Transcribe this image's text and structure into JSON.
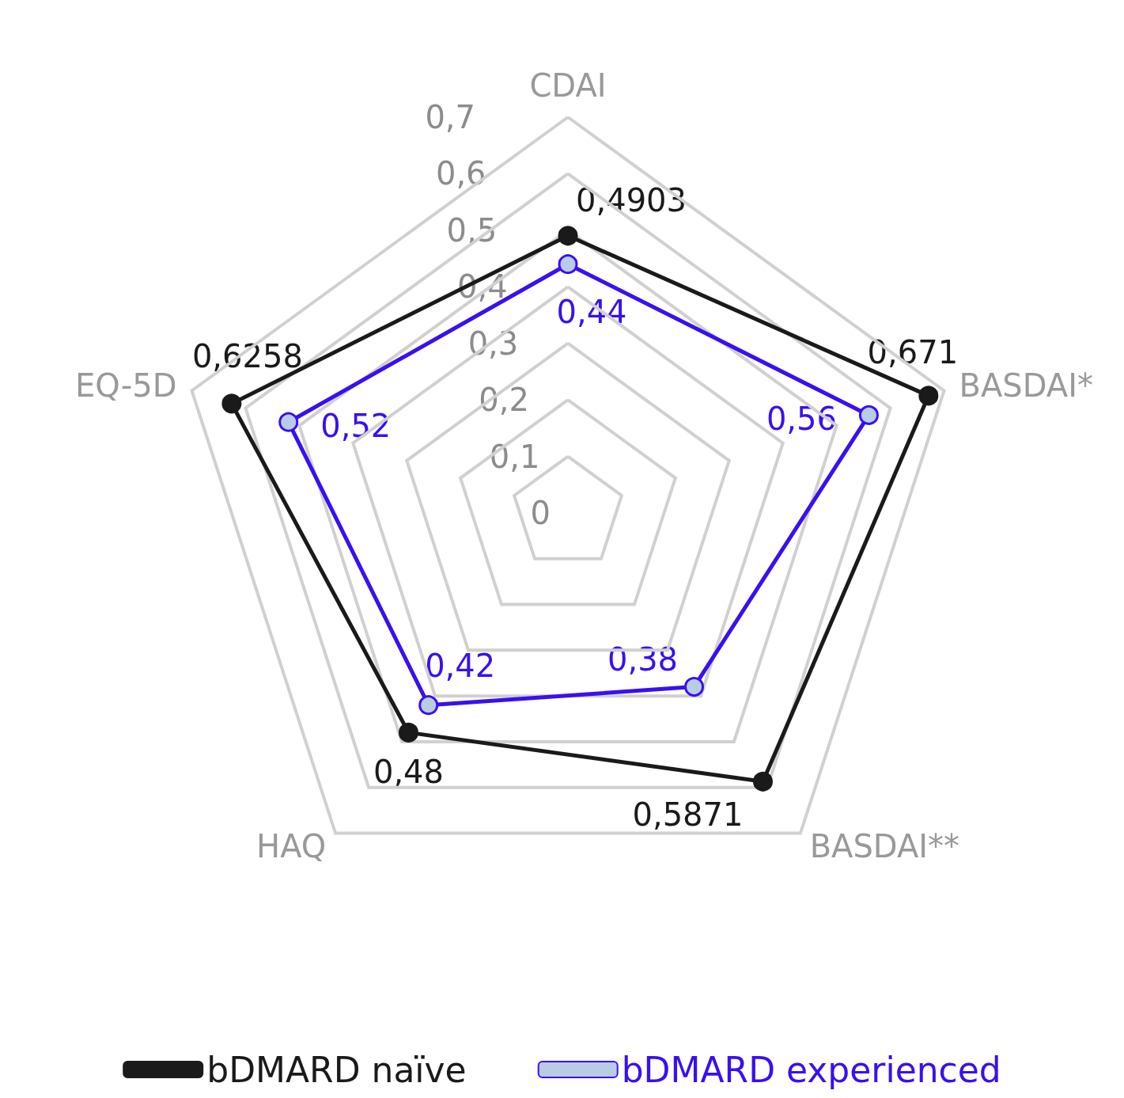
{
  "chart_data": {
    "type": "radar",
    "categories": [
      "CDAI",
      "BASDAI*",
      "BASDAI**",
      "HAQ",
      "EQ-5D"
    ],
    "ylim": [
      0,
      0.7
    ],
    "yticks": [
      {
        "value": 0,
        "label": "0"
      },
      {
        "value": 0.1,
        "label": "0,1"
      },
      {
        "value": 0.2,
        "label": "0,2"
      },
      {
        "value": 0.3,
        "label": "0,3"
      },
      {
        "value": 0.4,
        "label": "0,4"
      },
      {
        "value": 0.5,
        "label": "0,5"
      },
      {
        "value": 0.6,
        "label": "0,6"
      },
      {
        "value": 0.7,
        "label": "0,7"
      }
    ],
    "series": [
      {
        "name": "bDMARD naïve",
        "color": "#1a1a1a",
        "values": [
          0.4903,
          0.671,
          0.5871,
          0.48,
          0.6258
        ],
        "value_labels": [
          "0,4903",
          "0,671",
          "0,5871",
          "0,48",
          "0,6258"
        ]
      },
      {
        "name": "bDMARD experienced",
        "color": "#3a0ff0",
        "values": [
          0.44,
          0.56,
          0.38,
          0.42,
          0.52
        ],
        "value_labels": [
          "0,44",
          "0,56",
          "0,38",
          "0,42",
          "0,52"
        ]
      }
    ],
    "legend": "bottom",
    "marker": "circle",
    "grid": true
  }
}
